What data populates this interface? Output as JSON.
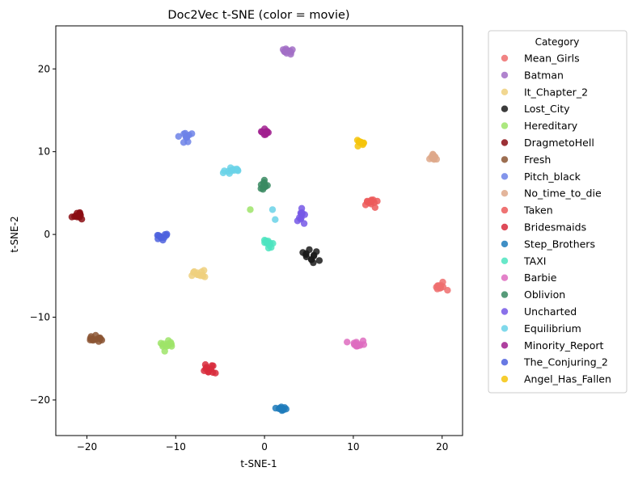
{
  "chart_data": {
    "type": "scatter",
    "title": "Doc2Vec t-SNE (color = movie)",
    "xlabel": "t-SNE-1",
    "ylabel": "t-SNE-2",
    "xlim": [
      -23.5,
      22.3
    ],
    "ylim": [
      -24.3,
      25.2
    ],
    "xticks": [
      -20,
      -10,
      0,
      10,
      20
    ],
    "yticks": [
      -20,
      -10,
      0,
      10,
      20
    ],
    "grid": false,
    "legend_title": "Category",
    "legend_position": "outside-right",
    "series": [
      {
        "name": "Mean_Girls",
        "color": "#ee6e6e",
        "center": [
          19.8,
          -6.3
        ],
        "spread": [
          0.7,
          0.6
        ],
        "n": 12
      },
      {
        "name": "Batman",
        "color": "#a26ec6",
        "center": [
          2.4,
          22.2
        ],
        "spread": [
          0.7,
          0.4
        ],
        "n": 12
      },
      {
        "name": "It_Chapter_2",
        "color": "#efd07e",
        "center": [
          -7.2,
          -4.8
        ],
        "spread": [
          0.8,
          0.4
        ],
        "n": 12
      },
      {
        "name": "Lost_City",
        "color": "#1a1a1a",
        "center": [
          5.2,
          -2.7
        ],
        "spread": [
          0.8,
          0.9
        ],
        "n": 12
      },
      {
        "name": "Hereditary",
        "color": "#9ee469",
        "center": [
          -11.0,
          -13.3
        ],
        "spread": [
          0.6,
          0.5
        ],
        "n": 12
      },
      {
        "name": "DragmetoHell",
        "color": "#8b0d13",
        "center": [
          -21.0,
          2.4
        ],
        "spread": [
          0.6,
          0.4
        ],
        "n": 12
      },
      {
        "name": "Fresh",
        "color": "#8b5532",
        "center": [
          -18.9,
          -12.5
        ],
        "spread": [
          0.8,
          0.4
        ],
        "n": 12
      },
      {
        "name": "Pitch_black",
        "color": "#6d82e8",
        "center": [
          -8.9,
          11.8
        ],
        "spread": [
          0.6,
          0.6
        ],
        "n": 12
      },
      {
        "name": "No_time_to_die",
        "color": "#dea889",
        "center": [
          19.0,
          9.3
        ],
        "spread": [
          0.5,
          0.3
        ],
        "n": 12
      },
      {
        "name": "Taken",
        "color": "#ec5a5a",
        "center": [
          12.1,
          3.9
        ],
        "spread": [
          0.8,
          0.5
        ],
        "n": 12
      },
      {
        "name": "Bridesmaids",
        "color": "#d82c3c",
        "center": [
          -6.2,
          -16.4
        ],
        "spread": [
          0.6,
          0.6
        ],
        "n": 12
      },
      {
        "name": "Step_Brothers",
        "color": "#1f7bbb",
        "center": [
          2.0,
          -21.0
        ],
        "spread": [
          0.6,
          0.3
        ],
        "n": 12
      },
      {
        "name": "TAXI",
        "color": "#4ee4c0",
        "center": [
          0.2,
          -1.0
        ],
        "spread": [
          0.5,
          0.7
        ],
        "n": 12
      },
      {
        "name": "Barbie",
        "color": "#de6cc0",
        "center": [
          10.5,
          -13.4
        ],
        "spread": [
          0.6,
          0.4
        ],
        "n": 12
      },
      {
        "name": "Oblivion",
        "color": "#3a8a62",
        "center": [
          0.0,
          5.9
        ],
        "spread": [
          0.6,
          0.7
        ],
        "n": 12
      },
      {
        "name": "Uncharted",
        "color": "#7658e6",
        "center": [
          4.2,
          2.1
        ],
        "spread": [
          0.4,
          0.8
        ],
        "n": 12
      },
      {
        "name": "Equilibrium",
        "color": "#6ad2e8",
        "center": [
          -3.6,
          7.7
        ],
        "spread": [
          0.9,
          0.3
        ],
        "n": 12
      },
      {
        "name": "Minority_Report",
        "color": "#a01f8e",
        "center": [
          0.0,
          12.3
        ],
        "spread": [
          0.5,
          0.5
        ],
        "n": 12
      },
      {
        "name": "The_Conjuring_2",
        "color": "#4d62de",
        "center": [
          -11.5,
          -0.3
        ],
        "spread": [
          0.7,
          0.3
        ],
        "n": 12
      },
      {
        "name": "Angel_Has_Fallen",
        "color": "#f4c40c",
        "center": [
          10.9,
          11.0
        ],
        "spread": [
          0.5,
          0.4
        ],
        "n": 12
      }
    ],
    "extra_points": [
      {
        "series": "Hereditary",
        "x": -1.6,
        "y": 3.0
      },
      {
        "series": "Equilibrium",
        "x": 0.9,
        "y": 3.0
      },
      {
        "series": "Equilibrium",
        "x": 1.2,
        "y": 1.8
      },
      {
        "series": "Barbie",
        "x": 9.3,
        "y": -13.0
      }
    ]
  }
}
